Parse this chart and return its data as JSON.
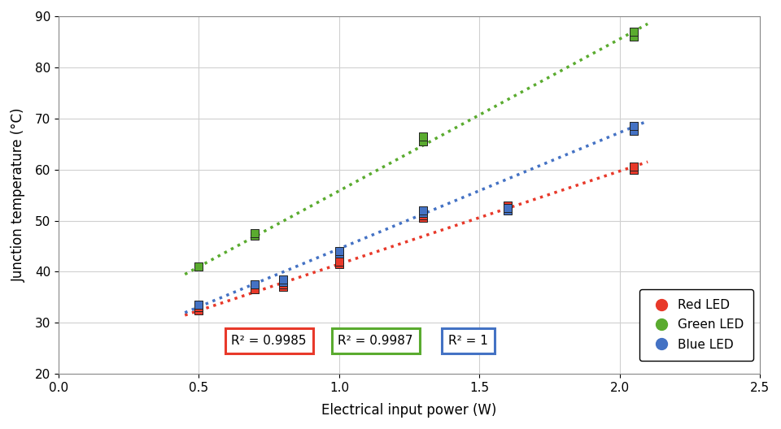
{
  "title": "",
  "xlabel": "Electrical input power (W)",
  "ylabel": "Junction temperature (°C)",
  "xlim": [
    0.0,
    2.5
  ],
  "ylim": [
    20,
    90
  ],
  "xticks": [
    0.0,
    0.5,
    1.0,
    1.5,
    2.0,
    2.5
  ],
  "yticks": [
    20,
    30,
    40,
    50,
    60,
    70,
    80,
    90
  ],
  "red_x": [
    0.5,
    0.5,
    0.7,
    0.8,
    0.8,
    1.0,
    1.0,
    1.3,
    1.3,
    1.6,
    1.6,
    2.05,
    2.05
  ],
  "red_y": [
    32.5,
    33.0,
    36.5,
    37.0,
    37.5,
    41.5,
    42.0,
    50.5,
    51.0,
    52.5,
    53.0,
    60.0,
    60.5
  ],
  "green_x": [
    0.5,
    0.7,
    0.7,
    1.3,
    1.3,
    2.05,
    2.05
  ],
  "green_y": [
    41.0,
    47.0,
    47.5,
    65.5,
    66.5,
    86.0,
    87.0
  ],
  "blue_x": [
    0.5,
    0.7,
    0.8,
    0.8,
    1.0,
    1.0,
    1.3,
    1.3,
    1.6,
    1.6,
    2.05,
    2.05
  ],
  "blue_y": [
    33.5,
    37.5,
    38.0,
    38.5,
    43.5,
    44.0,
    51.5,
    52.0,
    52.0,
    52.5,
    67.5,
    68.5
  ],
  "red_color": "#e8392a",
  "green_color": "#5aab2f",
  "blue_color": "#4472c4",
  "red_trend_x": [
    0.45,
    2.1
  ],
  "red_trend_y": [
    31.5,
    61.5
  ],
  "green_trend_x": [
    0.45,
    2.1
  ],
  "green_trend_y": [
    39.5,
    88.5
  ],
  "blue_trend_x": [
    0.45,
    2.1
  ],
  "blue_trend_y": [
    32.0,
    69.5
  ],
  "r2_red": "R² = 0.9985",
  "r2_green": "R² = 0.9987",
  "r2_blue": "R² = 1",
  "legend_labels": [
    "Red LED",
    "Green LED",
    "Blue LED"
  ],
  "r2_red_x": 0.75,
  "r2_red_y": 26.5,
  "r2_green_x": 1.13,
  "r2_green_y": 26.5,
  "r2_blue_x": 1.46,
  "r2_blue_y": 26.5
}
